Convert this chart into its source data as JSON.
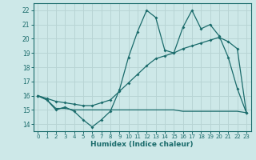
{
  "xlabel": "Humidex (Indice chaleur)",
  "ylabel": "",
  "bg_color": "#cde8e8",
  "grid_color": "#b8d4d4",
  "line_color": "#1a6b6b",
  "xlim": [
    -0.5,
    23.5
  ],
  "ylim": [
    13.5,
    22.5
  ],
  "xticks": [
    0,
    1,
    2,
    3,
    4,
    5,
    6,
    7,
    8,
    9,
    10,
    11,
    12,
    13,
    14,
    15,
    16,
    17,
    18,
    19,
    20,
    21,
    22,
    23
  ],
  "yticks": [
    14,
    15,
    16,
    17,
    18,
    19,
    20,
    21,
    22
  ],
  "series1_x": [
    0,
    1,
    2,
    3,
    4,
    5,
    6,
    7,
    8,
    9,
    10,
    11,
    12,
    13,
    14,
    15,
    16,
    17,
    18,
    19,
    20,
    21,
    22,
    23
  ],
  "series1_y": [
    16.0,
    15.7,
    15.0,
    15.2,
    14.9,
    14.3,
    13.8,
    14.3,
    14.9,
    16.4,
    18.7,
    20.5,
    22.0,
    21.5,
    19.2,
    19.0,
    20.8,
    22.0,
    20.7,
    21.0,
    20.2,
    18.7,
    16.5,
    14.8
  ],
  "series2_x": [
    0,
    1,
    2,
    3,
    4,
    5,
    6,
    7,
    8,
    9,
    10,
    11,
    12,
    13,
    14,
    15,
    16,
    17,
    18,
    19,
    20,
    21,
    22,
    23
  ],
  "series2_y": [
    16.0,
    15.8,
    15.6,
    15.5,
    15.4,
    15.3,
    15.3,
    15.5,
    15.7,
    16.3,
    16.9,
    17.5,
    18.1,
    18.6,
    18.8,
    19.0,
    19.3,
    19.5,
    19.7,
    19.9,
    20.1,
    19.8,
    19.3,
    14.8
  ],
  "series3_x": [
    0,
    1,
    2,
    3,
    4,
    5,
    6,
    7,
    8,
    9,
    10,
    11,
    12,
    13,
    14,
    15,
    16,
    17,
    18,
    19,
    20,
    21,
    22,
    23
  ],
  "series3_y": [
    16.0,
    15.7,
    15.1,
    15.1,
    15.0,
    15.0,
    15.0,
    15.0,
    15.0,
    15.0,
    15.0,
    15.0,
    15.0,
    15.0,
    15.0,
    15.0,
    14.9,
    14.9,
    14.9,
    14.9,
    14.9,
    14.9,
    14.9,
    14.8
  ]
}
